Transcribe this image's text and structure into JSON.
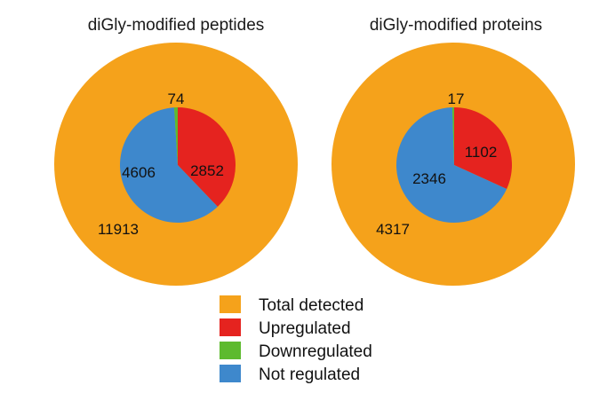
{
  "chart_data": [
    {
      "type": "pie",
      "title": "diGly-modified peptides",
      "outer": {
        "label": "Total detected",
        "value": 11913
      },
      "inner": [
        {
          "label": "Upregulated",
          "value": 2852
        },
        {
          "label": "Downregulated",
          "value": 74
        },
        {
          "label": "Not regulated",
          "value": 4606
        }
      ]
    },
    {
      "type": "pie",
      "title": "diGly-modified proteins",
      "outer": {
        "label": "Total detected",
        "value": 4317
      },
      "inner": [
        {
          "label": "Upregulated",
          "value": 1102
        },
        {
          "label": "Downregulated",
          "value": 17
        },
        {
          "label": "Not regulated",
          "value": 2346
        }
      ]
    }
  ],
  "legend": {
    "items": [
      {
        "label": "Total detected",
        "color": "#F5A21B"
      },
      {
        "label": "Upregulated",
        "color": "#E5231F"
      },
      {
        "label": "Downregulated",
        "color": "#5DBA2E"
      },
      {
        "label": "Not regulated",
        "color": "#3E88CC"
      }
    ]
  }
}
